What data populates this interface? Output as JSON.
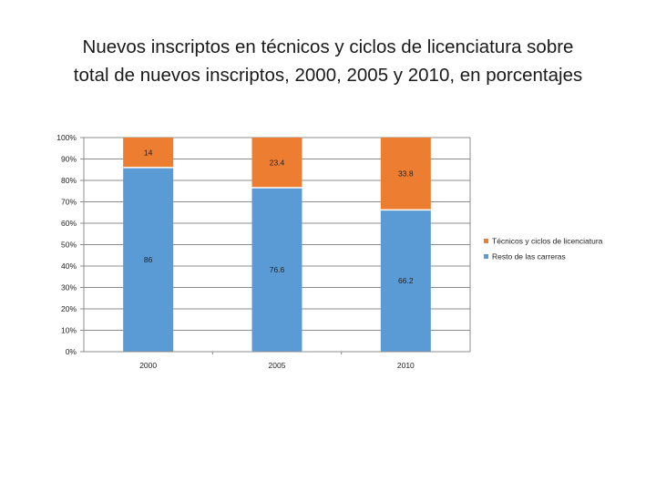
{
  "title_lines": [
    "Nuevos inscriptos en técnicos y ciclos de licenciatura sobre",
    "total de nuevos inscriptos, 2000, 2005 y 2010, en porcentajes"
  ],
  "chart_data": {
    "type": "bar",
    "stacked": true,
    "percent_stacked": true,
    "title": "Nuevos inscriptos en técnicos y ciclos de licenciatura sobre total de nuevos inscriptos, 2000, 2005 y 2010, en porcentajes",
    "categories": [
      "2000",
      "2005",
      "2010"
    ],
    "series": [
      {
        "name": "Resto de las carreras",
        "values": [
          86,
          76.6,
          66.2
        ],
        "labels": [
          "86",
          "76.6",
          "66.2"
        ],
        "color": "#5b9bd5"
      },
      {
        "name": "Técnicos y ciclos de licenciatura",
        "values": [
          14,
          23.4,
          33.8
        ],
        "labels": [
          "14",
          "23.4",
          "33.8"
        ],
        "color": "#ed7d31"
      }
    ],
    "ylim": [
      0,
      100
    ],
    "yticks": [
      "0%",
      "10%",
      "20%",
      "30%",
      "40%",
      "50%",
      "60%",
      "70%",
      "80%",
      "90%",
      "100%"
    ],
    "grid": true,
    "legend_order": [
      "Técnicos y ciclos de licenciatura",
      "Resto de las carreras"
    ],
    "legend_position": "right",
    "xlabel": "",
    "ylabel": ""
  }
}
